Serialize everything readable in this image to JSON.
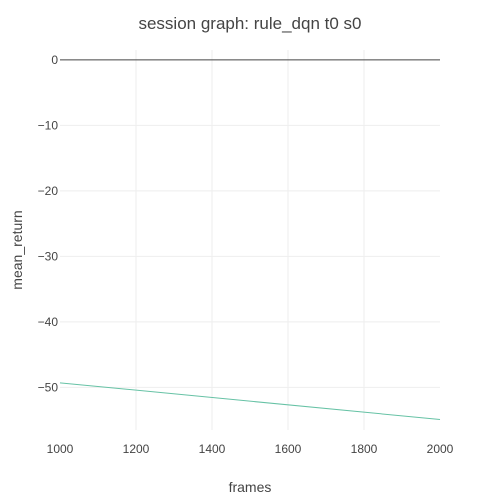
{
  "chart_data": {
    "type": "line",
    "title": "session graph: rule_dqn t0 s0",
    "xlabel": "frames",
    "ylabel": "mean_return",
    "xlim": [
      1000,
      2000
    ],
    "ylim": [
      -56.5,
      1.5
    ],
    "x_ticks": [
      1000,
      1200,
      1400,
      1600,
      1800,
      2000
    ],
    "x_tick_labels": [
      "1000",
      "1200",
      "1400",
      "1600",
      "1800",
      "2000"
    ],
    "y_ticks": [
      0,
      -10,
      -20,
      -30,
      -40,
      -50
    ],
    "y_tick_labels": [
      "0",
      "−10",
      "−20",
      "−30",
      "−40",
      "−50"
    ],
    "grid": true,
    "legend": "none",
    "series": [
      {
        "color": "#66c2a5",
        "x": [
          1000,
          2000
        ],
        "y": [
          -49.3,
          -54.9
        ]
      }
    ]
  }
}
